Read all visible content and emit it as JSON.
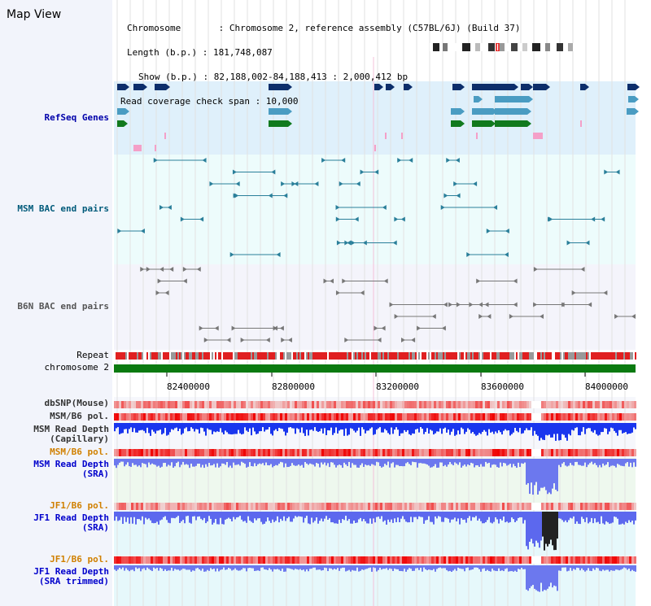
{
  "page": {
    "title": "Map View"
  },
  "info": {
    "chromosome": "Chromosome       : Chromosome 2, reference assembly (C57BL/6J) (Build 37)",
    "length": "Length (b.p.) : 181,748,087",
    "show": "Show (b.p.) : 82,188,002-84,188,413 : 2,000,412 bp",
    "span": "Read coverage check span : 10,000"
  },
  "tracks": {
    "refseq": "RefSeq Genes",
    "msm_bac": "MSM BAC end pairs",
    "b6n_bac": "B6N BAC end pairs",
    "repeat": "Repeat",
    "chromosome": "chromosome 2",
    "dbsnp": "dbSNP(Mouse)",
    "msm_b6_pol_1": "MSM/B6 pol.",
    "msm_read_depth_cap_1": "MSM Read Depth",
    "msm_read_depth_cap_2": "(Capillary)",
    "msm_b6_pol_2": "MSM/B6 pol.",
    "msm_read_depth_sra_1": "MSM Read Depth",
    "msm_read_depth_sra_2": "(SRA)",
    "jf1_b6_pol_1": "JF1/B6 pol.",
    "jf1_read_depth_1": "JF1 Read Depth",
    "jf1_read_depth_2": "(SRA)",
    "jf1_b6_pol_2": "JF1/B6 pol.",
    "jf1_trim_1": "JF1 Read Depth",
    "jf1_trim_2": "(SRA trimmed)"
  },
  "axis": {
    "ticks": [
      "82400000",
      "82800000",
      "83200000",
      "83600000",
      "84000000"
    ]
  },
  "colors": {
    "refseq_bg": "#dff0fb",
    "msm_bac_bg": "#edfcfc",
    "b6n_bac_bg": "#f4f4fb",
    "gene_navy": "#0d2e6b",
    "gene_teal": "#4a9cc2",
    "gene_green": "#117a1e",
    "repeat_red": "#e02020",
    "chrom_green": "#0a7a10",
    "depth_blue": "#1a36ee",
    "msm_label": "#003a7a",
    "pol_label": "#d08000",
    "depth_label": "#0000cc"
  }
}
